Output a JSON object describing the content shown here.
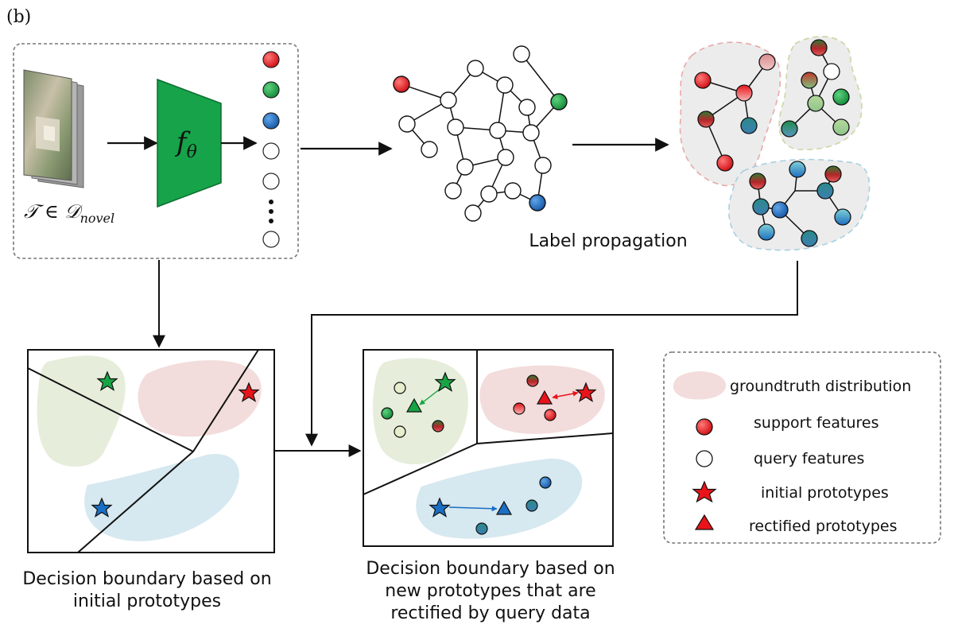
{
  "panel_label": "(b)",
  "input_label": {
    "prefix": "𝒯 ∈ 𝒟",
    "subscript": "novel"
  },
  "network_label": {
    "main": "f",
    "subscript": "θ"
  },
  "label_propagation": "Label propagation",
  "caption_initial": {
    "line1": "Decision boundary based on",
    "line2": "initial prototypes"
  },
  "caption_rectified": {
    "line1": "Decision boundary based on",
    "line2": "new prototypes that are",
    "line3": "rectified by query data"
  },
  "legend": {
    "groundtruth": "groundtruth distribution",
    "support": "support features",
    "query": "query features",
    "initial": "initial prototypes",
    "rectified": "rectified prototypes"
  },
  "colors": {
    "red": "#e8141a",
    "green": "#18a444",
    "blue": "#1a6fc4",
    "network_green": "#16a34a",
    "pink_region": "#f3dcdc",
    "green_region": "#e6eedb",
    "blue_region": "#d6e8f0",
    "grey_region": "#ececec"
  }
}
